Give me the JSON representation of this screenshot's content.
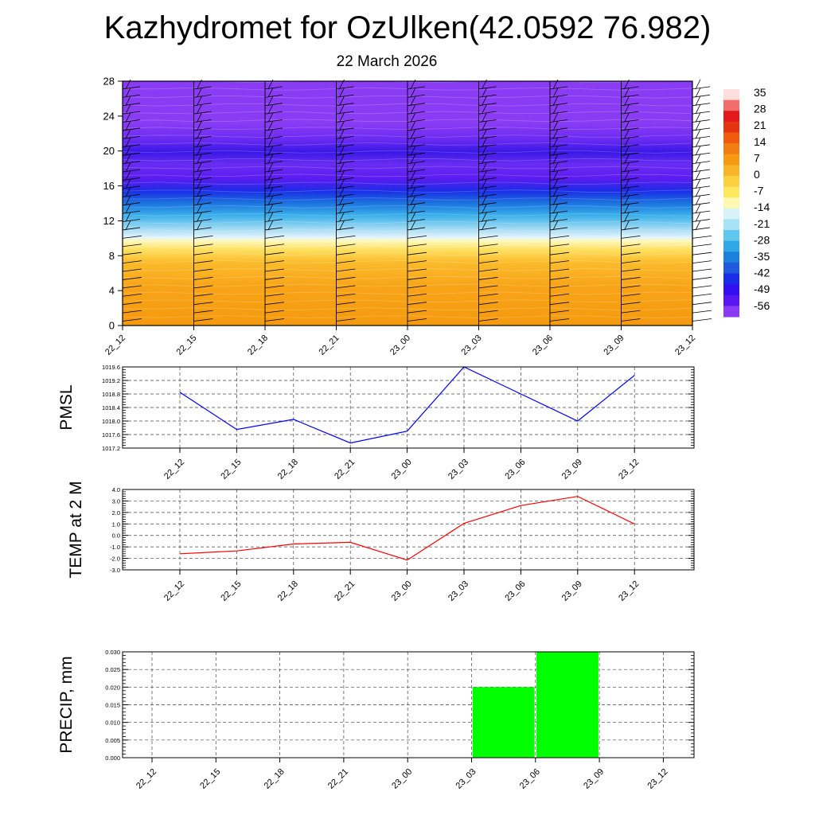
{
  "title": "Kazhydromet for OzUlken(42.0592 76.982)",
  "subtitle": "22 March 2026",
  "chart_data": [
    {
      "type": "heatmap",
      "name": "vertical-cross-section",
      "x_ticks": [
        "22_12",
        "22_15",
        "22_18",
        "22_21",
        "23_00",
        "23_03",
        "23_06",
        "23_09",
        "23_12"
      ],
      "y_ticks": [
        0,
        4,
        8,
        12,
        16,
        20,
        24,
        28
      ],
      "ylim": [
        0,
        28
      ],
      "colorbar": {
        "labels": [
          "35",
          "28",
          "21",
          "14",
          "7",
          "0",
          "-7",
          "-14",
          "-21",
          "-28",
          "-35",
          "-42",
          "-49",
          "-56"
        ],
        "colors": [
          "#fde0dd",
          "#f46d6d",
          "#e31a1c",
          "#e3340f",
          "#ef5a0c",
          "#f07e10",
          "#f59a12",
          "#f8b52a",
          "#fbd040",
          "#fde860",
          "#fff8b0",
          "#d8f2fa",
          "#a8e2f6",
          "#60c8ee",
          "#30a8e6",
          "#1a80dc",
          "#2058e0",
          "#1a2ce8",
          "#3410f0",
          "#5a18f0",
          "#8a3cf4"
        ]
      },
      "bands": [
        {
          "from": 0,
          "to": 9.7,
          "description_color": "#f8b020"
        },
        {
          "from": 9.7,
          "to": 11,
          "description_color": "#fff8b0"
        },
        {
          "from": 11,
          "to": 16,
          "description_color": "#40b0e8"
        },
        {
          "from": 16,
          "to": 28,
          "description_color": "#5a20f0"
        }
      ]
    },
    {
      "type": "line",
      "name": "pmsl",
      "ylabel": "PMSL",
      "x": [
        "22_12",
        "22_15",
        "22_18",
        "22_21",
        "23_00",
        "23_03",
        "23_06",
        "23_09",
        "23_12"
      ],
      "y": [
        1018.85,
        1017.75,
        1018.05,
        1017.35,
        1017.7,
        1019.6,
        1018.8,
        1018.0,
        1019.35
      ],
      "ylim": [
        1017.2,
        1019.6
      ],
      "yticks": [
        "1017.2",
        "1017.6",
        "1018.0",
        "1018.4",
        "1018.8",
        "1019.2",
        "1019.6"
      ],
      "color": "#0000ff"
    },
    {
      "type": "line",
      "name": "temperature",
      "ylabel": "TEMP at 2 M",
      "x": [
        "22_12",
        "22_15",
        "22_18",
        "22_21",
        "23_00",
        "23_03",
        "23_06",
        "23_09",
        "23_12"
      ],
      "y": [
        -1.6,
        -1.35,
        -0.75,
        -0.6,
        -2.15,
        1.05,
        2.6,
        3.4,
        1.0
      ],
      "ylim": [
        -3.0,
        4.0
      ],
      "yticks": [
        "-3.0",
        "-2.0",
        "-1.0",
        "0.0",
        "1.0",
        "2.0",
        "3.0",
        "4.0"
      ],
      "color": "#ff0000"
    },
    {
      "type": "bar",
      "name": "precipitation",
      "ylabel": "PRECIP, mm",
      "x": [
        "22_12",
        "22_15",
        "22_18",
        "22_21",
        "23_00",
        "23_03",
        "23_06",
        "23_09",
        "23_12"
      ],
      "values": [
        0,
        0,
        0,
        0,
        0,
        0,
        0.02,
        0.03,
        0
      ],
      "ylim": [
        0,
        0.03
      ],
      "yticks": [
        "0.000",
        "0.005",
        "0.010",
        "0.015",
        "0.020",
        "0.025",
        "0.030"
      ],
      "color": "#00ff00"
    }
  ]
}
